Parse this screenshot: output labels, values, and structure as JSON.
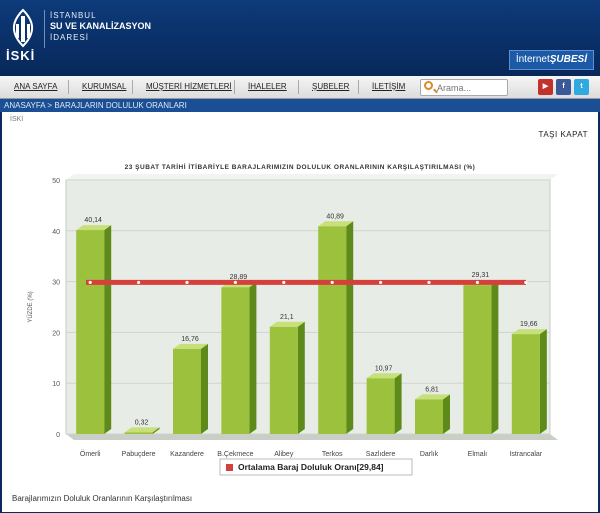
{
  "header": {
    "logo_text": "İSKİ",
    "org_line1": "İSTANBUL",
    "org_line2": "SU VE KANALİZASYON",
    "org_line3": "İDARESİ",
    "internet_label": "İnternet",
    "internet_bold": "ŞUBESİ"
  },
  "nav": {
    "items": [
      "ANA SAYFA",
      "KURUMSAL",
      "MÜŞTERİ HİZMETLERİ",
      "İHALELER",
      "ŞUBELER",
      "İLETİŞİM"
    ],
    "search_placeholder": "Arama..."
  },
  "breadcrumb": "ANASAYFA > BARAJLARIN DOLULUK ORANLARI",
  "content": {
    "top_label": "İSKİ",
    "move_close": "TAŞI  KAPAT",
    "title": "23 ŞUBAT TARİHİ İTİBARİYLE BARAJLARIMIZIN DOLULUK ORANLARININ KARŞILAŞTIRILMASI (%)",
    "footer": "Barajlarımızın Doluluk Oranlarının Karşılaştırılması"
  },
  "colors": {
    "bar": "#9cc23d",
    "bar_side": "#5e8a1a",
    "bar_top": "#c8e07a",
    "avg_line": "#d6403a",
    "plot_bg": "#e8ece6"
  },
  "chart_data": {
    "type": "bar",
    "title": "23 ŞUBAT TARİHİ İTİBARİYLE BARAJLARIMIZIN DOLULUK ORANLARININ KARŞILAŞTIRILMASI (%)",
    "ylabel": "YÜZDE (%)",
    "ylim": [
      0,
      50
    ],
    "yticks": [
      0,
      10,
      20,
      30,
      40,
      50
    ],
    "categories": [
      "Ömerli",
      "Pabuçdere",
      "Kazandere",
      "B.Çekmece",
      "Alibey",
      "Terkos",
      "Sazlıdere",
      "Darlık",
      "Elmalı",
      "Istrancalar"
    ],
    "values": [
      40.14,
      0.32,
      16.76,
      28.89,
      21.1,
      40.89,
      10.97,
      6.81,
      29.31,
      19.66
    ],
    "labels": [
      "40,14",
      "0,32",
      "16,76",
      "28,89",
      "21,1",
      "40,89",
      "10,97",
      "6,81",
      "29,31",
      "19,66"
    ],
    "average": 29.84,
    "legend": "Ortalama Baraj Doluluk Oranı[29,84]"
  }
}
